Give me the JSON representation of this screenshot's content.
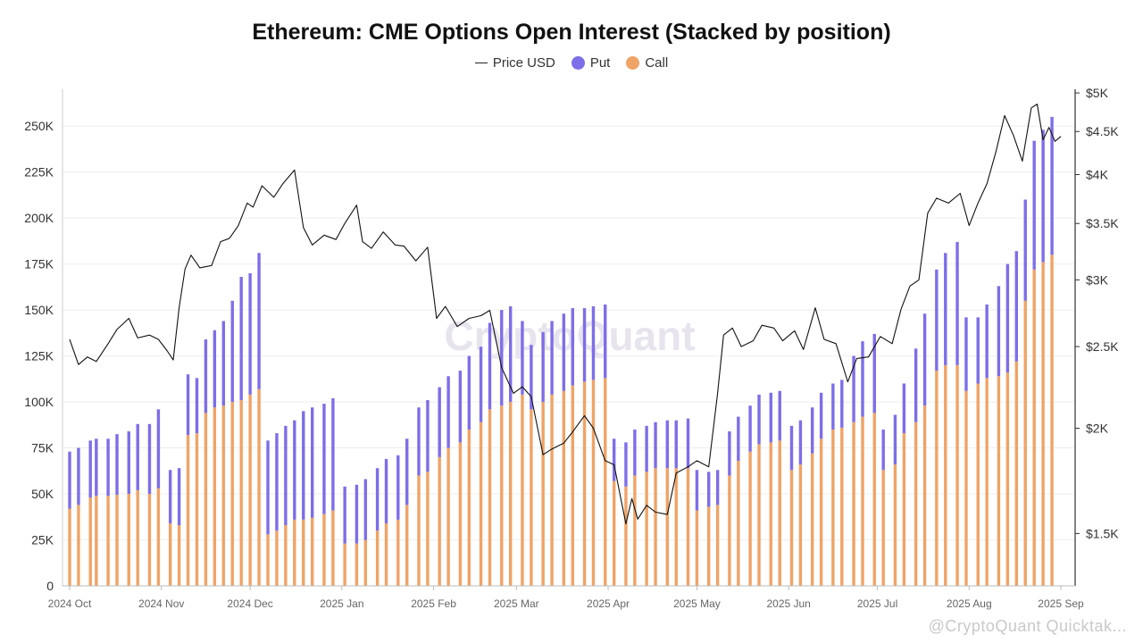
{
  "chart_data": {
    "type": "bar",
    "stacked": true,
    "title": "Ethereum: CME Options Open Interest (Stacked by position)",
    "legend": [
      {
        "name": "Price USD",
        "color": "#222222",
        "kind": "line"
      },
      {
        "name": "Put",
        "color": "#7d6ee9",
        "kind": "dot"
      },
      {
        "name": "Call",
        "color": "#f0a366",
        "kind": "dot"
      }
    ],
    "legend_position": "top-center",
    "x_tick_labels": [
      "2024 Oct",
      "2024 Nov",
      "2024 Dec",
      "2025 Jan",
      "2025 Feb",
      "2025 Mar",
      "2025 Apr",
      "2025 May",
      "2025 Jun",
      "2025 Jul",
      "2025 Aug",
      "2025 Sep"
    ],
    "y_left": {
      "ticks": [
        0,
        25000,
        50000,
        75000,
        100000,
        125000,
        150000,
        175000,
        200000,
        225000,
        250000
      ],
      "tick_labels": [
        "0",
        "25K",
        "50K",
        "75K",
        "100K",
        "125K",
        "150K",
        "175K",
        "200K",
        "225K",
        "250K"
      ],
      "range": [
        0,
        270000
      ]
    },
    "y_right": {
      "scale": "log",
      "ticks": [
        1500,
        2000,
        2500,
        3000,
        3500,
        4000,
        4500,
        5000
      ],
      "tick_labels": [
        "$1.5K",
        "$2K",
        "$2.5K",
        "$3K",
        "$3.5K",
        "$4K",
        "$4.5K",
        "$5K"
      ],
      "range": [
        1300,
        5050
      ]
    },
    "grid": true,
    "bars": [
      {
        "date": "2024-10-01",
        "call": 42000,
        "put": 31000
      },
      {
        "date": "2024-10-04",
        "call": 44000,
        "put": 31000
      },
      {
        "date": "2024-10-08",
        "call": 48000,
        "put": 31000
      },
      {
        "date": "2024-10-10",
        "call": 49000,
        "put": 31000
      },
      {
        "date": "2024-10-14",
        "call": 49000,
        "put": 31000
      },
      {
        "date": "2024-10-17",
        "call": 49500,
        "put": 33000
      },
      {
        "date": "2024-10-21",
        "call": 50000,
        "put": 34000
      },
      {
        "date": "2024-10-24",
        "call": 52000,
        "put": 36000
      },
      {
        "date": "2024-10-28",
        "call": 50000,
        "put": 38000
      },
      {
        "date": "2024-10-31",
        "call": 53000,
        "put": 43000
      },
      {
        "date": "2024-11-04",
        "call": 34000,
        "put": 29000
      },
      {
        "date": "2024-11-07",
        "call": 33000,
        "put": 31000
      },
      {
        "date": "2024-11-10",
        "call": 82000,
        "put": 33000
      },
      {
        "date": "2024-11-13",
        "call": 83000,
        "put": 30000
      },
      {
        "date": "2024-11-16",
        "call": 94000,
        "put": 40000
      },
      {
        "date": "2024-11-19",
        "call": 97000,
        "put": 42000
      },
      {
        "date": "2024-11-22",
        "call": 98000,
        "put": 46000
      },
      {
        "date": "2024-11-25",
        "call": 100000,
        "put": 55000
      },
      {
        "date": "2024-11-28",
        "call": 101000,
        "put": 67000
      },
      {
        "date": "2024-12-01",
        "call": 104000,
        "put": 66000
      },
      {
        "date": "2024-12-04",
        "call": 107000,
        "put": 74000
      },
      {
        "date": "2024-12-07",
        "call": 28000,
        "put": 51000
      },
      {
        "date": "2024-12-10",
        "call": 30000,
        "put": 53000
      },
      {
        "date": "2024-12-13",
        "call": 33000,
        "put": 54000
      },
      {
        "date": "2024-12-16",
        "call": 36000,
        "put": 54000
      },
      {
        "date": "2024-12-19",
        "call": 36000,
        "put": 59000
      },
      {
        "date": "2024-12-22",
        "call": 37000,
        "put": 60000
      },
      {
        "date": "2024-12-26",
        "call": 39000,
        "put": 60000
      },
      {
        "date": "2024-12-29",
        "call": 41000,
        "put": 61000
      },
      {
        "date": "2025-01-02",
        "call": 23000,
        "put": 31000
      },
      {
        "date": "2025-01-06",
        "call": 23000,
        "put": 32000
      },
      {
        "date": "2025-01-09",
        "call": 25000,
        "put": 33000
      },
      {
        "date": "2025-01-13",
        "call": 30000,
        "put": 34000
      },
      {
        "date": "2025-01-16",
        "call": 34000,
        "put": 35000
      },
      {
        "date": "2025-01-20",
        "call": 36000,
        "put": 35000
      },
      {
        "date": "2025-01-23",
        "call": 44000,
        "put": 36000
      },
      {
        "date": "2025-01-27",
        "call": 60000,
        "put": 37000
      },
      {
        "date": "2025-01-30",
        "call": 62000,
        "put": 39000
      },
      {
        "date": "2025-02-03",
        "call": 70000,
        "put": 38000
      },
      {
        "date": "2025-02-06",
        "call": 75000,
        "put": 39000
      },
      {
        "date": "2025-02-10",
        "call": 78000,
        "put": 39000
      },
      {
        "date": "2025-02-13",
        "call": 85000,
        "put": 40000
      },
      {
        "date": "2025-02-17",
        "call": 89000,
        "put": 41000
      },
      {
        "date": "2025-02-20",
        "call": 96000,
        "put": 47000
      },
      {
        "date": "2025-02-24",
        "call": 98000,
        "put": 52000
      },
      {
        "date": "2025-02-27",
        "call": 100000,
        "put": 52000
      },
      {
        "date": "2025-03-03",
        "call": 104000,
        "put": 40000
      },
      {
        "date": "2025-03-06",
        "call": 96000,
        "put": 35000
      },
      {
        "date": "2025-03-10",
        "call": 100000,
        "put": 38000
      },
      {
        "date": "2025-03-13",
        "call": 104000,
        "put": 40000
      },
      {
        "date": "2025-03-17",
        "call": 106000,
        "put": 42000
      },
      {
        "date": "2025-03-20",
        "call": 109000,
        "put": 42000
      },
      {
        "date": "2025-03-24",
        "call": 111000,
        "put": 40000
      },
      {
        "date": "2025-03-27",
        "call": 112000,
        "put": 40000
      },
      {
        "date": "2025-03-31",
        "call": 113000,
        "put": 40000
      },
      {
        "date": "2025-04-03",
        "call": 57000,
        "put": 23000
      },
      {
        "date": "2025-04-07",
        "call": 54000,
        "put": 24000
      },
      {
        "date": "2025-04-10",
        "call": 60000,
        "put": 25000
      },
      {
        "date": "2025-04-14",
        "call": 62000,
        "put": 25000
      },
      {
        "date": "2025-04-17",
        "call": 64000,
        "put": 25000
      },
      {
        "date": "2025-04-21",
        "call": 64000,
        "put": 26000
      },
      {
        "date": "2025-04-24",
        "call": 64000,
        "put": 26000
      },
      {
        "date": "2025-04-28",
        "call": 64000,
        "put": 27000
      },
      {
        "date": "2025-05-01",
        "call": 41000,
        "put": 22000
      },
      {
        "date": "2025-05-05",
        "call": 43000,
        "put": 19000
      },
      {
        "date": "2025-05-08",
        "call": 44000,
        "put": 19000
      },
      {
        "date": "2025-05-12",
        "call": 60000,
        "put": 24000
      },
      {
        "date": "2025-05-15",
        "call": 68000,
        "put": 24000
      },
      {
        "date": "2025-05-19",
        "call": 73000,
        "put": 25000
      },
      {
        "date": "2025-05-22",
        "call": 77000,
        "put": 27000
      },
      {
        "date": "2025-05-26",
        "call": 78000,
        "put": 27000
      },
      {
        "date": "2025-05-29",
        "call": 79000,
        "put": 27000
      },
      {
        "date": "2025-06-02",
        "call": 63000,
        "put": 24000
      },
      {
        "date": "2025-06-05",
        "call": 66000,
        "put": 24000
      },
      {
        "date": "2025-06-09",
        "call": 72000,
        "put": 25000
      },
      {
        "date": "2025-06-12",
        "call": 80000,
        "put": 25000
      },
      {
        "date": "2025-06-16",
        "call": 85000,
        "put": 25000
      },
      {
        "date": "2025-06-19",
        "call": 86000,
        "put": 26000
      },
      {
        "date": "2025-06-23",
        "call": 89000,
        "put": 36000
      },
      {
        "date": "2025-06-26",
        "call": 92000,
        "put": 41000
      },
      {
        "date": "2025-06-30",
        "call": 94000,
        "put": 43000
      },
      {
        "date": "2025-07-03",
        "call": 63000,
        "put": 22000
      },
      {
        "date": "2025-07-07",
        "call": 66000,
        "put": 27000
      },
      {
        "date": "2025-07-10",
        "call": 83000,
        "put": 27000
      },
      {
        "date": "2025-07-14",
        "call": 89000,
        "put": 40000
      },
      {
        "date": "2025-07-17",
        "call": 98000,
        "put": 50000
      },
      {
        "date": "2025-07-21",
        "call": 117000,
        "put": 55000
      },
      {
        "date": "2025-07-24",
        "call": 120000,
        "put": 61000
      },
      {
        "date": "2025-07-28",
        "call": 120000,
        "put": 67000
      },
      {
        "date": "2025-07-31",
        "call": 106000,
        "put": 40000
      },
      {
        "date": "2025-08-04",
        "call": 110000,
        "put": 36000
      },
      {
        "date": "2025-08-07",
        "call": 113000,
        "put": 40000
      },
      {
        "date": "2025-08-11",
        "call": 114000,
        "put": 49000
      },
      {
        "date": "2025-08-14",
        "call": 116000,
        "put": 59000
      },
      {
        "date": "2025-08-17",
        "call": 122000,
        "put": 60000
      },
      {
        "date": "2025-08-20",
        "call": 155000,
        "put": 55000
      },
      {
        "date": "2025-08-23",
        "call": 172000,
        "put": 70000
      },
      {
        "date": "2025-08-26",
        "call": 176000,
        "put": 72000
      },
      {
        "date": "2025-08-29",
        "call": 180000,
        "put": 75000
      }
    ],
    "price_usd": [
      [
        "2024-10-01",
        2550
      ],
      [
        "2024-10-04",
        2380
      ],
      [
        "2024-10-07",
        2430
      ],
      [
        "2024-10-10",
        2400
      ],
      [
        "2024-10-14",
        2520
      ],
      [
        "2024-10-17",
        2620
      ],
      [
        "2024-10-21",
        2700
      ],
      [
        "2024-10-24",
        2560
      ],
      [
        "2024-10-28",
        2580
      ],
      [
        "2024-10-31",
        2550
      ],
      [
        "2024-11-03",
        2470
      ],
      [
        "2024-11-05",
        2410
      ],
      [
        "2024-11-07",
        2780
      ],
      [
        "2024-11-09",
        3090
      ],
      [
        "2024-11-11",
        3210
      ],
      [
        "2024-11-14",
        3100
      ],
      [
        "2024-11-18",
        3120
      ],
      [
        "2024-11-21",
        3330
      ],
      [
        "2024-11-24",
        3360
      ],
      [
        "2024-11-27",
        3480
      ],
      [
        "2024-11-30",
        3700
      ],
      [
        "2024-12-02",
        3660
      ],
      [
        "2024-12-05",
        3880
      ],
      [
        "2024-12-09",
        3760
      ],
      [
        "2024-12-12",
        3900
      ],
      [
        "2024-12-16",
        4050
      ],
      [
        "2024-12-19",
        3460
      ],
      [
        "2024-12-22",
        3300
      ],
      [
        "2024-12-26",
        3390
      ],
      [
        "2024-12-30",
        3350
      ],
      [
        "2025-01-02",
        3500
      ],
      [
        "2025-01-06",
        3680
      ],
      [
        "2025-01-08",
        3330
      ],
      [
        "2025-01-11",
        3270
      ],
      [
        "2025-01-15",
        3420
      ],
      [
        "2025-01-19",
        3300
      ],
      [
        "2025-01-22",
        3290
      ],
      [
        "2025-01-26",
        3160
      ],
      [
        "2025-01-30",
        3280
      ],
      [
        "2025-02-02",
        2700
      ],
      [
        "2025-02-05",
        2790
      ],
      [
        "2025-02-09",
        2640
      ],
      [
        "2025-02-13",
        2700
      ],
      [
        "2025-02-17",
        2720
      ],
      [
        "2025-02-20",
        2760
      ],
      [
        "2025-02-24",
        2360
      ],
      [
        "2025-02-28",
        2200
      ],
      [
        "2025-03-03",
        2240
      ],
      [
        "2025-03-06",
        2180
      ],
      [
        "2025-03-10",
        1860
      ],
      [
        "2025-03-13",
        1890
      ],
      [
        "2025-03-17",
        1920
      ],
      [
        "2025-03-20",
        1980
      ],
      [
        "2025-03-24",
        2070
      ],
      [
        "2025-03-27",
        2000
      ],
      [
        "2025-03-31",
        1830
      ],
      [
        "2025-04-03",
        1810
      ],
      [
        "2025-04-07",
        1540
      ],
      [
        "2025-04-09",
        1650
      ],
      [
        "2025-04-11",
        1560
      ],
      [
        "2025-04-14",
        1620
      ],
      [
        "2025-04-17",
        1590
      ],
      [
        "2025-04-21",
        1580
      ],
      [
        "2025-04-24",
        1770
      ],
      [
        "2025-04-28",
        1800
      ],
      [
        "2025-05-01",
        1830
      ],
      [
        "2025-05-05",
        1800
      ],
      [
        "2025-05-08",
        2200
      ],
      [
        "2025-05-10",
        2580
      ],
      [
        "2025-05-13",
        2630
      ],
      [
        "2025-05-16",
        2500
      ],
      [
        "2025-05-20",
        2540
      ],
      [
        "2025-05-23",
        2650
      ],
      [
        "2025-05-27",
        2630
      ],
      [
        "2025-05-30",
        2540
      ],
      [
        "2025-06-03",
        2610
      ],
      [
        "2025-06-06",
        2480
      ],
      [
        "2025-06-10",
        2780
      ],
      [
        "2025-06-13",
        2550
      ],
      [
        "2025-06-17",
        2520
      ],
      [
        "2025-06-21",
        2270
      ],
      [
        "2025-06-24",
        2420
      ],
      [
        "2025-06-28",
        2430
      ],
      [
        "2025-07-02",
        2570
      ],
      [
        "2025-07-06",
        2520
      ],
      [
        "2025-07-09",
        2770
      ],
      [
        "2025-07-12",
        2950
      ],
      [
        "2025-07-15",
        3000
      ],
      [
        "2025-07-18",
        3600
      ],
      [
        "2025-07-21",
        3750
      ],
      [
        "2025-07-25",
        3700
      ],
      [
        "2025-07-29",
        3800
      ],
      [
        "2025-08-01",
        3480
      ],
      [
        "2025-08-04",
        3700
      ],
      [
        "2025-08-07",
        3900
      ],
      [
        "2025-08-10",
        4250
      ],
      [
        "2025-08-13",
        4700
      ],
      [
        "2025-08-16",
        4450
      ],
      [
        "2025-08-19",
        4150
      ],
      [
        "2025-08-22",
        4800
      ],
      [
        "2025-08-24",
        4850
      ],
      [
        "2025-08-26",
        4400
      ],
      [
        "2025-08-28",
        4550
      ],
      [
        "2025-08-30",
        4380
      ],
      [
        "2025-09-01",
        4440
      ]
    ]
  },
  "watermark": "CryptoQuant",
  "footer": "@CryptoQuant Quicktak..."
}
